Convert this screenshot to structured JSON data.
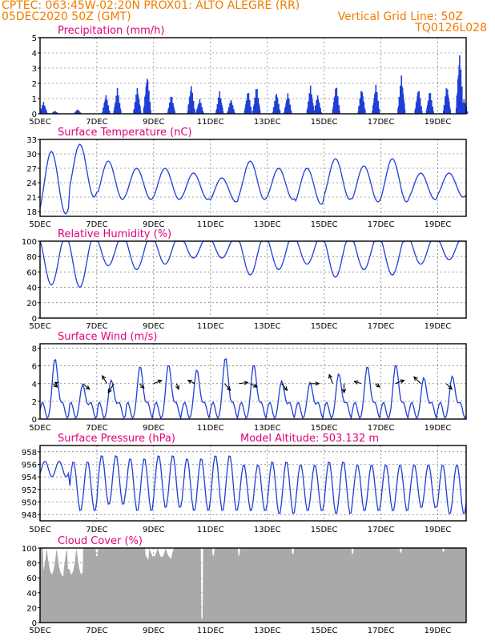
{
  "header": {
    "line1": "CPTEC:   063:45W-02:20N   PROX01: ALTO ALEGRE (RR)",
    "line2_left": "05DEC2020 50Z (GMT)",
    "line2_right": "Vertical Grid Line: 50Z",
    "line3_right": "TQ0126L028",
    "color": "#f07c00"
  },
  "colors": {
    "title": "#e0007a",
    "line": "#1f3fd6",
    "bar": "#1f3fd6",
    "cloud": "#a9a9a9",
    "grid": "#555555"
  },
  "chart_data": [
    {
      "type": "bar",
      "title": "Precipitation (mm/h)",
      "x_ticks": [
        "5DEC",
        "7DEC",
        "9DEC",
        "11DEC",
        "13DEC",
        "15DEC",
        "17DEC",
        "19DEC"
      ],
      "xlim_days": [
        5,
        20
      ],
      "ylim": [
        0,
        5
      ],
      "y_ticks": [
        0,
        1,
        2,
        3,
        4,
        5
      ],
      "grid": true,
      "hourly_peaks": [
        {
          "day": 5.1,
          "value": 0.8
        },
        {
          "day": 5.5,
          "value": 0.2
        },
        {
          "day": 6.3,
          "value": 0.3
        },
        {
          "day": 7.3,
          "value": 1.3
        },
        {
          "day": 7.7,
          "value": 1.7
        },
        {
          "day": 8.4,
          "value": 1.8
        },
        {
          "day": 8.75,
          "value": 2.7
        },
        {
          "day": 9.6,
          "value": 1.3
        },
        {
          "day": 10.3,
          "value": 2.0
        },
        {
          "day": 10.6,
          "value": 1.0
        },
        {
          "day": 11.3,
          "value": 1.5
        },
        {
          "day": 11.7,
          "value": 1.0
        },
        {
          "day": 12.3,
          "value": 1.6
        },
        {
          "day": 12.6,
          "value": 1.9
        },
        {
          "day": 13.3,
          "value": 1.5
        },
        {
          "day": 13.7,
          "value": 1.4
        },
        {
          "day": 14.5,
          "value": 1.9
        },
        {
          "day": 14.75,
          "value": 1.3
        },
        {
          "day": 15.4,
          "value": 2.0
        },
        {
          "day": 16.3,
          "value": 1.8
        },
        {
          "day": 16.8,
          "value": 2.0
        },
        {
          "day": 17.7,
          "value": 2.6
        },
        {
          "day": 18.3,
          "value": 1.8
        },
        {
          "day": 18.7,
          "value": 1.6
        },
        {
          "day": 19.3,
          "value": 2.0
        },
        {
          "day": 19.75,
          "value": 4.2
        },
        {
          "day": 19.9,
          "value": 1.0
        }
      ]
    },
    {
      "type": "line",
      "title": "Surface Temperature (nC)",
      "x_ticks": [
        "5DEC",
        "7DEC",
        "9DEC",
        "11DEC",
        "13DEC",
        "15DEC",
        "17DEC",
        "19DEC"
      ],
      "xlim_days": [
        5,
        20
      ],
      "ylim": [
        17,
        33
      ],
      "y_ticks": [
        18,
        21,
        24,
        27,
        30,
        33
      ],
      "grid": true,
      "daily_max": [
        30.5,
        32.0,
        28.5,
        27.0,
        27.0,
        26.0,
        25.0,
        28.5,
        27.0,
        27.0,
        29.0,
        27.5,
        29.0,
        26.0,
        26.0
      ],
      "daily_min": [
        17.5,
        21.0,
        20.5,
        20.5,
        20.5,
        20.5,
        20.0,
        20.5,
        20.5,
        19.5,
        20.5,
        20.0,
        20.0,
        20.5,
        21.0
      ]
    },
    {
      "type": "line",
      "title": "Relative Humidity (%)",
      "x_ticks": [
        "5DEC",
        "7DEC",
        "9DEC",
        "11DEC",
        "13DEC",
        "15DEC",
        "17DEC",
        "19DEC"
      ],
      "xlim_days": [
        5,
        20
      ],
      "ylim": [
        0,
        100
      ],
      "y_ticks": [
        0,
        20,
        40,
        60,
        80,
        100
      ],
      "grid": true,
      "daily_min": [
        35,
        32,
        60,
        55,
        62,
        70,
        70,
        48,
        55,
        62,
        45,
        55,
        48,
        62,
        68
      ]
    },
    {
      "type": "line",
      "title": "Surface Wind (m/s)",
      "x_ticks": [
        "5DEC",
        "7DEC",
        "9DEC",
        "11DEC",
        "13DEC",
        "15DEC",
        "17DEC",
        "19DEC"
      ],
      "xlim_days": [
        5,
        20
      ],
      "ylim": [
        0,
        8.5
      ],
      "y_ticks": [
        0,
        2,
        4,
        6,
        8
      ],
      "grid": true,
      "daily_peak": [
        7.6,
        4.4,
        5.0,
        6.7,
        6.9,
        6.3,
        7.7,
        6.9,
        4.9,
        4.7,
        5.8,
        6.7,
        6.9,
        5.3,
        5.5
      ],
      "vector_arrows": [
        {
          "day": 5.45,
          "u": 0.4,
          "v": -0.3
        },
        {
          "day": 5.6,
          "u": -0.2,
          "v": 0.1
        },
        {
          "day": 6.5,
          "u": 0.6,
          "v": -0.5
        },
        {
          "day": 7.35,
          "u": -0.4,
          "v": 0.7
        },
        {
          "day": 7.6,
          "u": -0.5,
          "v": -0.8
        },
        {
          "day": 8.5,
          "u": 0.4,
          "v": -0.4
        },
        {
          "day": 9.0,
          "u": 0.7,
          "v": 0.3
        },
        {
          "day": 9.8,
          "u": 0.2,
          "v": -0.5
        },
        {
          "day": 10.45,
          "u": -0.6,
          "v": 0.3
        },
        {
          "day": 11.5,
          "u": 0.5,
          "v": -0.6
        },
        {
          "day": 12.0,
          "u": 0.8,
          "v": 0.1
        },
        {
          "day": 12.4,
          "u": 0.6,
          "v": -0.3
        },
        {
          "day": 13.5,
          "u": 0.5,
          "v": -0.6
        },
        {
          "day": 14.5,
          "u": 0.8,
          "v": 0.0
        },
        {
          "day": 15.3,
          "u": -0.3,
          "v": 0.8
        },
        {
          "day": 15.7,
          "u": 0.0,
          "v": -0.8
        },
        {
          "day": 16.3,
          "u": -0.6,
          "v": 0.2
        },
        {
          "day": 16.8,
          "u": 0.4,
          "v": -0.3
        },
        {
          "day": 17.5,
          "u": 0.8,
          "v": 0.3
        },
        {
          "day": 18.4,
          "u": -0.6,
          "v": 0.6
        },
        {
          "day": 19.3,
          "u": 0.5,
          "v": -0.5
        }
      ]
    },
    {
      "type": "line",
      "title": "Surface Pressure (hPa)",
      "annotation": "Model Altitude: 503.132 m",
      "x_ticks": [
        "5DEC",
        "7DEC",
        "9DEC",
        "11DEC",
        "13DEC",
        "15DEC",
        "17DEC",
        "19DEC"
      ],
      "xlim_days": [
        5,
        20
      ],
      "ylim": [
        947,
        959
      ],
      "y_ticks": [
        948,
        950,
        952,
        954,
        956,
        958
      ],
      "grid": true,
      "twice_daily_max": [
        956.5,
        956.5,
        957.5,
        957.0,
        957.5,
        957.0,
        957.5,
        956.0,
        956.5,
        956.0,
        956.5,
        956.0,
        956.0,
        956.0,
        956.0
      ],
      "twice_daily_min": [
        954.0,
        948.5,
        949.5,
        948.5,
        949.0,
        948.5,
        948.5,
        948.5,
        948.0,
        948.5,
        948.0,
        948.5,
        948.5,
        949.0,
        948.0
      ]
    },
    {
      "type": "area",
      "title": "Cloud Cover (%)",
      "x_ticks": [
        "5DEC",
        "7DEC",
        "9DEC",
        "11DEC",
        "13DEC",
        "15DEC",
        "17DEC",
        "19DEC"
      ],
      "xlim_days": [
        5,
        20
      ],
      "ylim": [
        0,
        100
      ],
      "y_ticks": [
        0,
        20,
        40,
        60,
        80,
        100
      ],
      "grid": true,
      "typical_value": 100,
      "notable_dips": [
        {
          "day": 5.8,
          "value": 62
        },
        {
          "day": 6.0,
          "value": 72
        },
        {
          "day": 7.0,
          "value": 88
        },
        {
          "day": 8.8,
          "value": 85
        },
        {
          "day": 9.6,
          "value": 86
        },
        {
          "day": 10.7,
          "value": 5
        },
        {
          "day": 11.1,
          "value": 90
        },
        {
          "day": 12.0,
          "value": 90
        },
        {
          "day": 13.9,
          "value": 92
        },
        {
          "day": 16.0,
          "value": 92
        },
        {
          "day": 17.7,
          "value": 94
        },
        {
          "day": 19.2,
          "value": 95
        }
      ]
    }
  ]
}
